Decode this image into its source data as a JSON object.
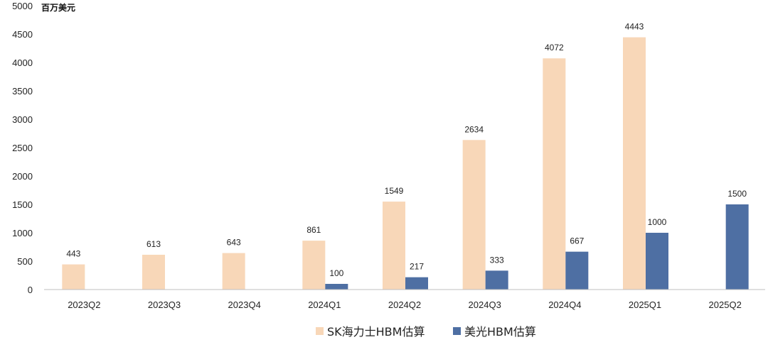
{
  "chart_data": {
    "type": "bar",
    "unit_label": "百万美元",
    "categories": [
      "2023Q2",
      "2023Q3",
      "2023Q4",
      "2024Q1",
      "2024Q2",
      "2024Q3",
      "2024Q4",
      "2025Q1",
      "2025Q2"
    ],
    "series": [
      {
        "name": "SK海力士HBM估算",
        "color": "#F8D7B8",
        "values": [
          443,
          613,
          643,
          861,
          1549,
          2634,
          4072,
          4443,
          null
        ]
      },
      {
        "name": "美光HBM估算",
        "color": "#4E6FA3",
        "values": [
          null,
          null,
          null,
          100,
          217,
          333,
          667,
          1000,
          1500
        ]
      }
    ],
    "ylim": [
      0,
      5000
    ],
    "yticks": [
      "0",
      "500",
      "1000",
      "1500",
      "2000",
      "2500",
      "3000",
      "3500",
      "4000",
      "4500",
      "5000"
    ],
    "grid": false,
    "legend_position": "bottom-center"
  }
}
